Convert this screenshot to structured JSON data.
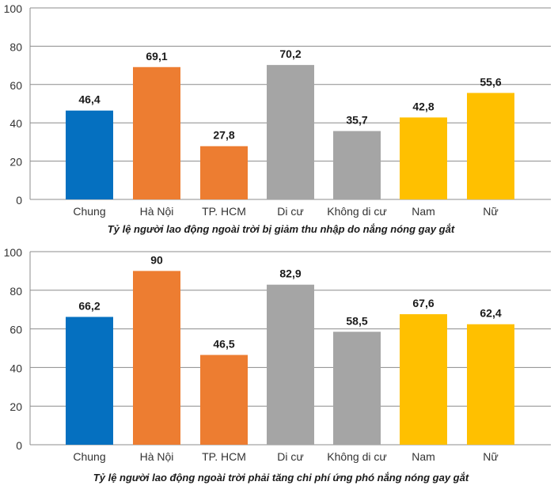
{
  "chart_data": [
    {
      "type": "bar",
      "title": "Tỷ lệ người lao động ngoài trời bị giảm thu nhập do nắng nóng gay gắt",
      "categories": [
        "Chung",
        "Hà Nội",
        "TP. HCM",
        "Di cư",
        "Không di cư",
        "Nam",
        "Nữ"
      ],
      "values": [
        46.4,
        69.1,
        27.8,
        70.2,
        35.7,
        42.8,
        55.6
      ],
      "value_labels": [
        "46,4",
        "69,1",
        "27,8",
        "70,2",
        "35,7",
        "42,8",
        "55,6"
      ],
      "bar_colors": [
        "#0570c0",
        "#ed7d31",
        "#ed7d31",
        "#a5a5a5",
        "#a5a5a5",
        "#ffc000",
        "#ffc000"
      ],
      "yticks": [
        "0",
        "20",
        "40",
        "60",
        "80",
        "100"
      ],
      "ylim": [
        0,
        100
      ],
      "grid": true,
      "xlabel": "",
      "ylabel": ""
    },
    {
      "type": "bar",
      "title": "Tỷ lệ người lao động ngoài trời phải tăng chi phí ứng phó nắng nóng gay gắt",
      "categories": [
        "Chung",
        "Hà Nội",
        "TP. HCM",
        "Di cư",
        "Không di cư",
        "Nam",
        "Nữ"
      ],
      "values": [
        66.2,
        90,
        46.5,
        82.9,
        58.5,
        67.6,
        62.4
      ],
      "value_labels": [
        "66,2",
        "90",
        "46,5",
        "82,9",
        "58,5",
        "67,6",
        "62,4"
      ],
      "bar_colors": [
        "#0570c0",
        "#ed7d31",
        "#ed7d31",
        "#a5a5a5",
        "#a5a5a5",
        "#ffc000",
        "#ffc000"
      ],
      "yticks": [
        "0",
        "20",
        "40",
        "60",
        "80",
        "100"
      ],
      "ylim": [
        0,
        100
      ],
      "grid": true,
      "xlabel": "",
      "ylabel": ""
    }
  ]
}
